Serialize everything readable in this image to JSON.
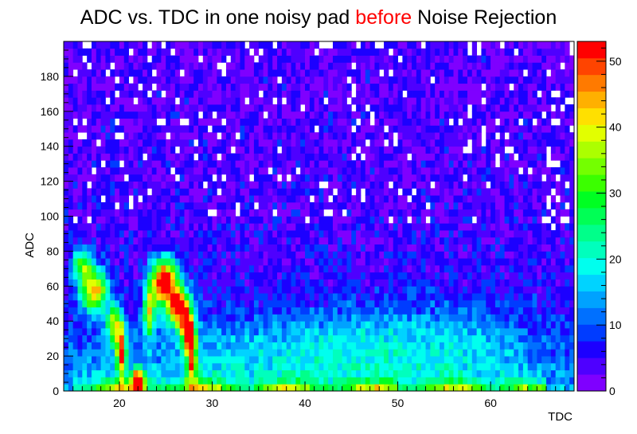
{
  "chart_data": {
    "type": "heatmap",
    "title_parts": {
      "before": "ADC vs. TDC in one noisy pad ",
      "highlight": "before",
      "after": " Noise Rejection",
      "highlight_color": "#ff0000"
    },
    "xlabel": "TDC",
    "ylabel": "ADC",
    "xlim": [
      14,
      69
    ],
    "ylim": [
      0,
      200
    ],
    "xticks": [
      20,
      30,
      40,
      50,
      60
    ],
    "yticks": [
      0,
      20,
      40,
      60,
      80,
      100,
      120,
      140,
      160,
      180
    ],
    "colorbar": {
      "zlim": [
        0,
        53
      ],
      "ticks": [
        0,
        10,
        20,
        30,
        40,
        50
      ],
      "palette": [
        "#7f00ff",
        "#4e00ff",
        "#1c00ff",
        "#003cff",
        "#0070ff",
        "#00a2ff",
        "#00d3ff",
        "#00ffee",
        "#00ffbd",
        "#00ff8a",
        "#00ff55",
        "#00ff22",
        "#3bff00",
        "#74ff00",
        "#acff00",
        "#e2ff00",
        "#ffe000",
        "#ffb000",
        "#ff7a00",
        "#ff4400",
        "#ff0000"
      ]
    },
    "bins": {
      "x_count": 110,
      "y_count": 50,
      "x_min": 14,
      "x_max": 69,
      "y_min": 0,
      "y_max": 200
    },
    "features": {
      "noise_band": "diffuse 0-10 counts across all bins, sparse empty bins above ADC 100",
      "hot_spots": [
        {
          "tdc": 17.3,
          "adc": 57,
          "peak": 53
        },
        {
          "tdc": 24.9,
          "adc": 58,
          "peak": 53
        },
        {
          "tdc": 27.3,
          "adc": 38,
          "peak": 50
        },
        {
          "tdc": 22.0,
          "adc": 5,
          "peak": 52
        }
      ],
      "low_adc_band": {
        "adc_max": 8,
        "tdc_range": [
          15,
          66
        ],
        "peak": 40
      }
    }
  }
}
